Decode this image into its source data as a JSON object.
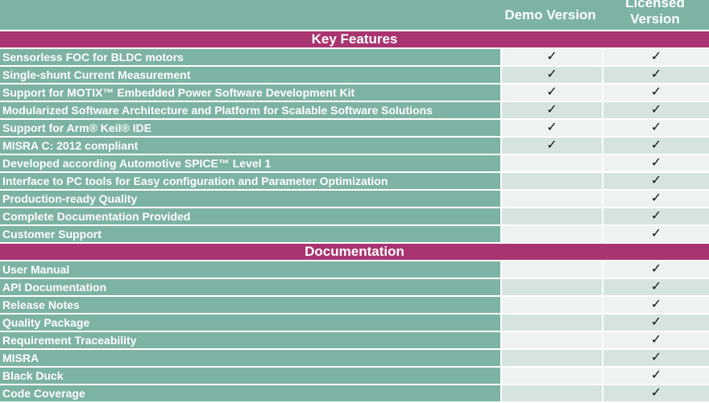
{
  "header": {
    "demo": "Demo Version",
    "licensed": "Licensed Version"
  },
  "check_icon": "✓",
  "colors": {
    "teal": "#7db3a4",
    "magenta": "#a83470"
  },
  "sections": [
    {
      "title": "Key Features",
      "rows": [
        {
          "label": "Sensorless FOC for BLDC motors",
          "demo": true,
          "licensed": true
        },
        {
          "label": "Single-shunt Current Measurement",
          "demo": true,
          "licensed": true
        },
        {
          "label": "Support for MOTIX™ Embedded Power Software Development Kit",
          "demo": true,
          "licensed": true
        },
        {
          "label": "Modularized Software Architecture and Platform for Scalable Software Solutions",
          "demo": true,
          "licensed": true
        },
        {
          "label": "Support for Arm® Keil® IDE",
          "demo": true,
          "licensed": true
        },
        {
          "label": "MISRA C: 2012 compliant",
          "demo": true,
          "licensed": true
        },
        {
          "label": "Developed according Automotive SPICE™ Level 1",
          "demo": false,
          "licensed": true
        },
        {
          "label": "Interface to PC tools for Easy configuration and Parameter Optimization",
          "demo": false,
          "licensed": true
        },
        {
          "label": "Production-ready Quality",
          "demo": false,
          "licensed": true
        },
        {
          "label": "Complete Documentation Provided",
          "demo": false,
          "licensed": true
        },
        {
          "label": "Customer Support",
          "demo": false,
          "licensed": true
        }
      ]
    },
    {
      "title": "Documentation",
      "rows": [
        {
          "label": "User Manual",
          "demo": false,
          "licensed": true
        },
        {
          "label": "API Documentation",
          "demo": false,
          "licensed": true
        },
        {
          "label": "Release Notes",
          "demo": false,
          "licensed": true
        },
        {
          "label": "Quality Package",
          "demo": false,
          "licensed": true
        },
        {
          "label": "Requirement Traceability",
          "demo": false,
          "licensed": true
        },
        {
          "label": "MISRA",
          "demo": false,
          "licensed": true
        },
        {
          "label": "Black Duck",
          "demo": false,
          "licensed": true
        },
        {
          "label": "Code Coverage",
          "demo": false,
          "licensed": true
        }
      ]
    }
  ]
}
